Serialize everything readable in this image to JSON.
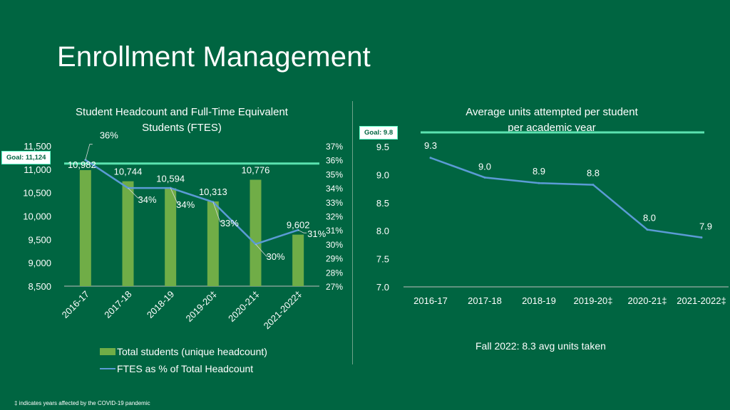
{
  "title": "Enrollment Management",
  "footnote": "‡ indicates years affected by the COVID-19 pandemic",
  "fall_note": "Fall 2022:  8.3 avg units taken",
  "colors": {
    "background": "#006541",
    "bar": "#70ad47",
    "line": "#5b9bd5",
    "goal": "#5be3b0",
    "text": "#ffffff"
  },
  "chart_data": [
    {
      "type": "bar+line",
      "title_line1": "Student Headcount and Full-Time Equivalent",
      "title_line2": "Students (FTES)",
      "categories": [
        "2016-17",
        "2017-18",
        "2018-19",
        "2019-20‡",
        "2020-21‡",
        "2021-2022‡"
      ],
      "series": [
        {
          "name": "Total students (unique headcount)",
          "axis": "left",
          "values": [
            10982,
            10744,
            10594,
            10313,
            10776,
            9602
          ],
          "labels": [
            "10,982",
            "10,744",
            "10,594",
            "10,313",
            "10,776",
            "9,602"
          ]
        },
        {
          "name": "FTES as % of Total Headcount",
          "axis": "right",
          "values": [
            36,
            34,
            34,
            33,
            30,
            31
          ],
          "labels": [
            "36%",
            "34%",
            "34%",
            "33%",
            "30%",
            "31%"
          ]
        }
      ],
      "left_axis": {
        "ylim": [
          8500,
          11500
        ],
        "ticks": [
          8500,
          9000,
          9500,
          10000,
          10500,
          11000,
          11500
        ],
        "tick_labels": [
          "8,500",
          "9,000",
          "9,500",
          "10,000",
          "10,500",
          "11,000",
          "11,500"
        ]
      },
      "right_axis": {
        "ylim": [
          27,
          37
        ],
        "ticks": [
          27,
          28,
          29,
          30,
          31,
          32,
          33,
          34,
          35,
          36,
          37
        ],
        "tick_labels": [
          "27%",
          "28%",
          "29%",
          "30%",
          "31%",
          "32%",
          "33%",
          "34%",
          "35%",
          "36%",
          "37%"
        ]
      },
      "goal": {
        "value": 11124,
        "label": "Goal:  11,124"
      }
    },
    {
      "type": "line",
      "title_line1": "Average units attempted per student",
      "title_line2": "per academic year",
      "categories": [
        "2016-17",
        "2017-18",
        "2018-19",
        "2019-20‡",
        "2020-21‡",
        "2021-2022‡"
      ],
      "values": [
        9.3,
        8.95,
        8.85,
        8.82,
        8.02,
        7.88
      ],
      "labels": [
        "9.3",
        "9.0",
        "8.9",
        "8.8",
        "8.0",
        "7.9"
      ],
      "ylim": [
        7.0,
        9.5
      ],
      "ticks": [
        7.0,
        7.5,
        8.0,
        8.5,
        9.0,
        9.5
      ],
      "tick_labels": [
        "7.0",
        "7.5",
        "8.0",
        "8.5",
        "9.0",
        "9.5"
      ],
      "goal": {
        "value": 9.8,
        "label": "Goal:  9.8"
      }
    }
  ]
}
